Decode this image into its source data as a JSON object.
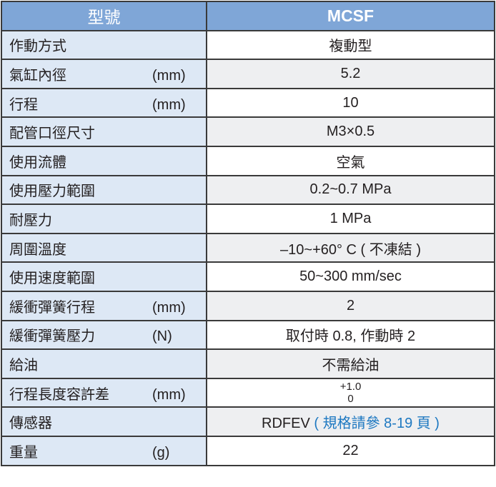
{
  "header": {
    "label": "型號",
    "model": "MCSF"
  },
  "rows": [
    {
      "label": "作動方式",
      "unit": "",
      "value": "複動型"
    },
    {
      "label": "氣缸內徑",
      "unit": "(mm)",
      "value": "5.2"
    },
    {
      "label": "行程",
      "unit": "(mm)",
      "value": "10"
    },
    {
      "label": "配管口徑尺寸",
      "unit": "",
      "value": "M3×0.5"
    },
    {
      "label": "使用流體",
      "unit": "",
      "value": "空氣"
    },
    {
      "label": "使用壓力範圍",
      "unit": "",
      "value": "0.2~0.7 MPa"
    },
    {
      "label": "耐壓力",
      "unit": "",
      "value": "1 MPa"
    },
    {
      "label": "周圍溫度",
      "unit": "",
      "value": "–10~+60° C ( 不凍結 )"
    },
    {
      "label": "使用速度範圍",
      "unit": "",
      "value": "50~300 mm/sec"
    },
    {
      "label": "緩衝彈簧行程",
      "unit": "(mm)",
      "value": "2"
    },
    {
      "label": "緩衝彈簧壓力",
      "unit": "(N)",
      "value": "取付時 0.8, 作動時 2"
    },
    {
      "label": "給油",
      "unit": "",
      "value": "不需給油"
    },
    {
      "label": "行程長度容許差",
      "unit": "(mm)",
      "value_upper": "+1.0",
      "value_lower": "0"
    },
    {
      "label": "傳感器",
      "unit": "",
      "value": "RDFEV",
      "value_ref": "( 規格請參 8-19 頁 )"
    },
    {
      "label": "重量",
      "unit": "(g)",
      "value": "22"
    }
  ],
  "colors": {
    "header_bg": "#7fa6d7",
    "label_bg": "#dde8f5",
    "alt_row_bg": "#eeeff1",
    "link": "#1d78c1"
  }
}
